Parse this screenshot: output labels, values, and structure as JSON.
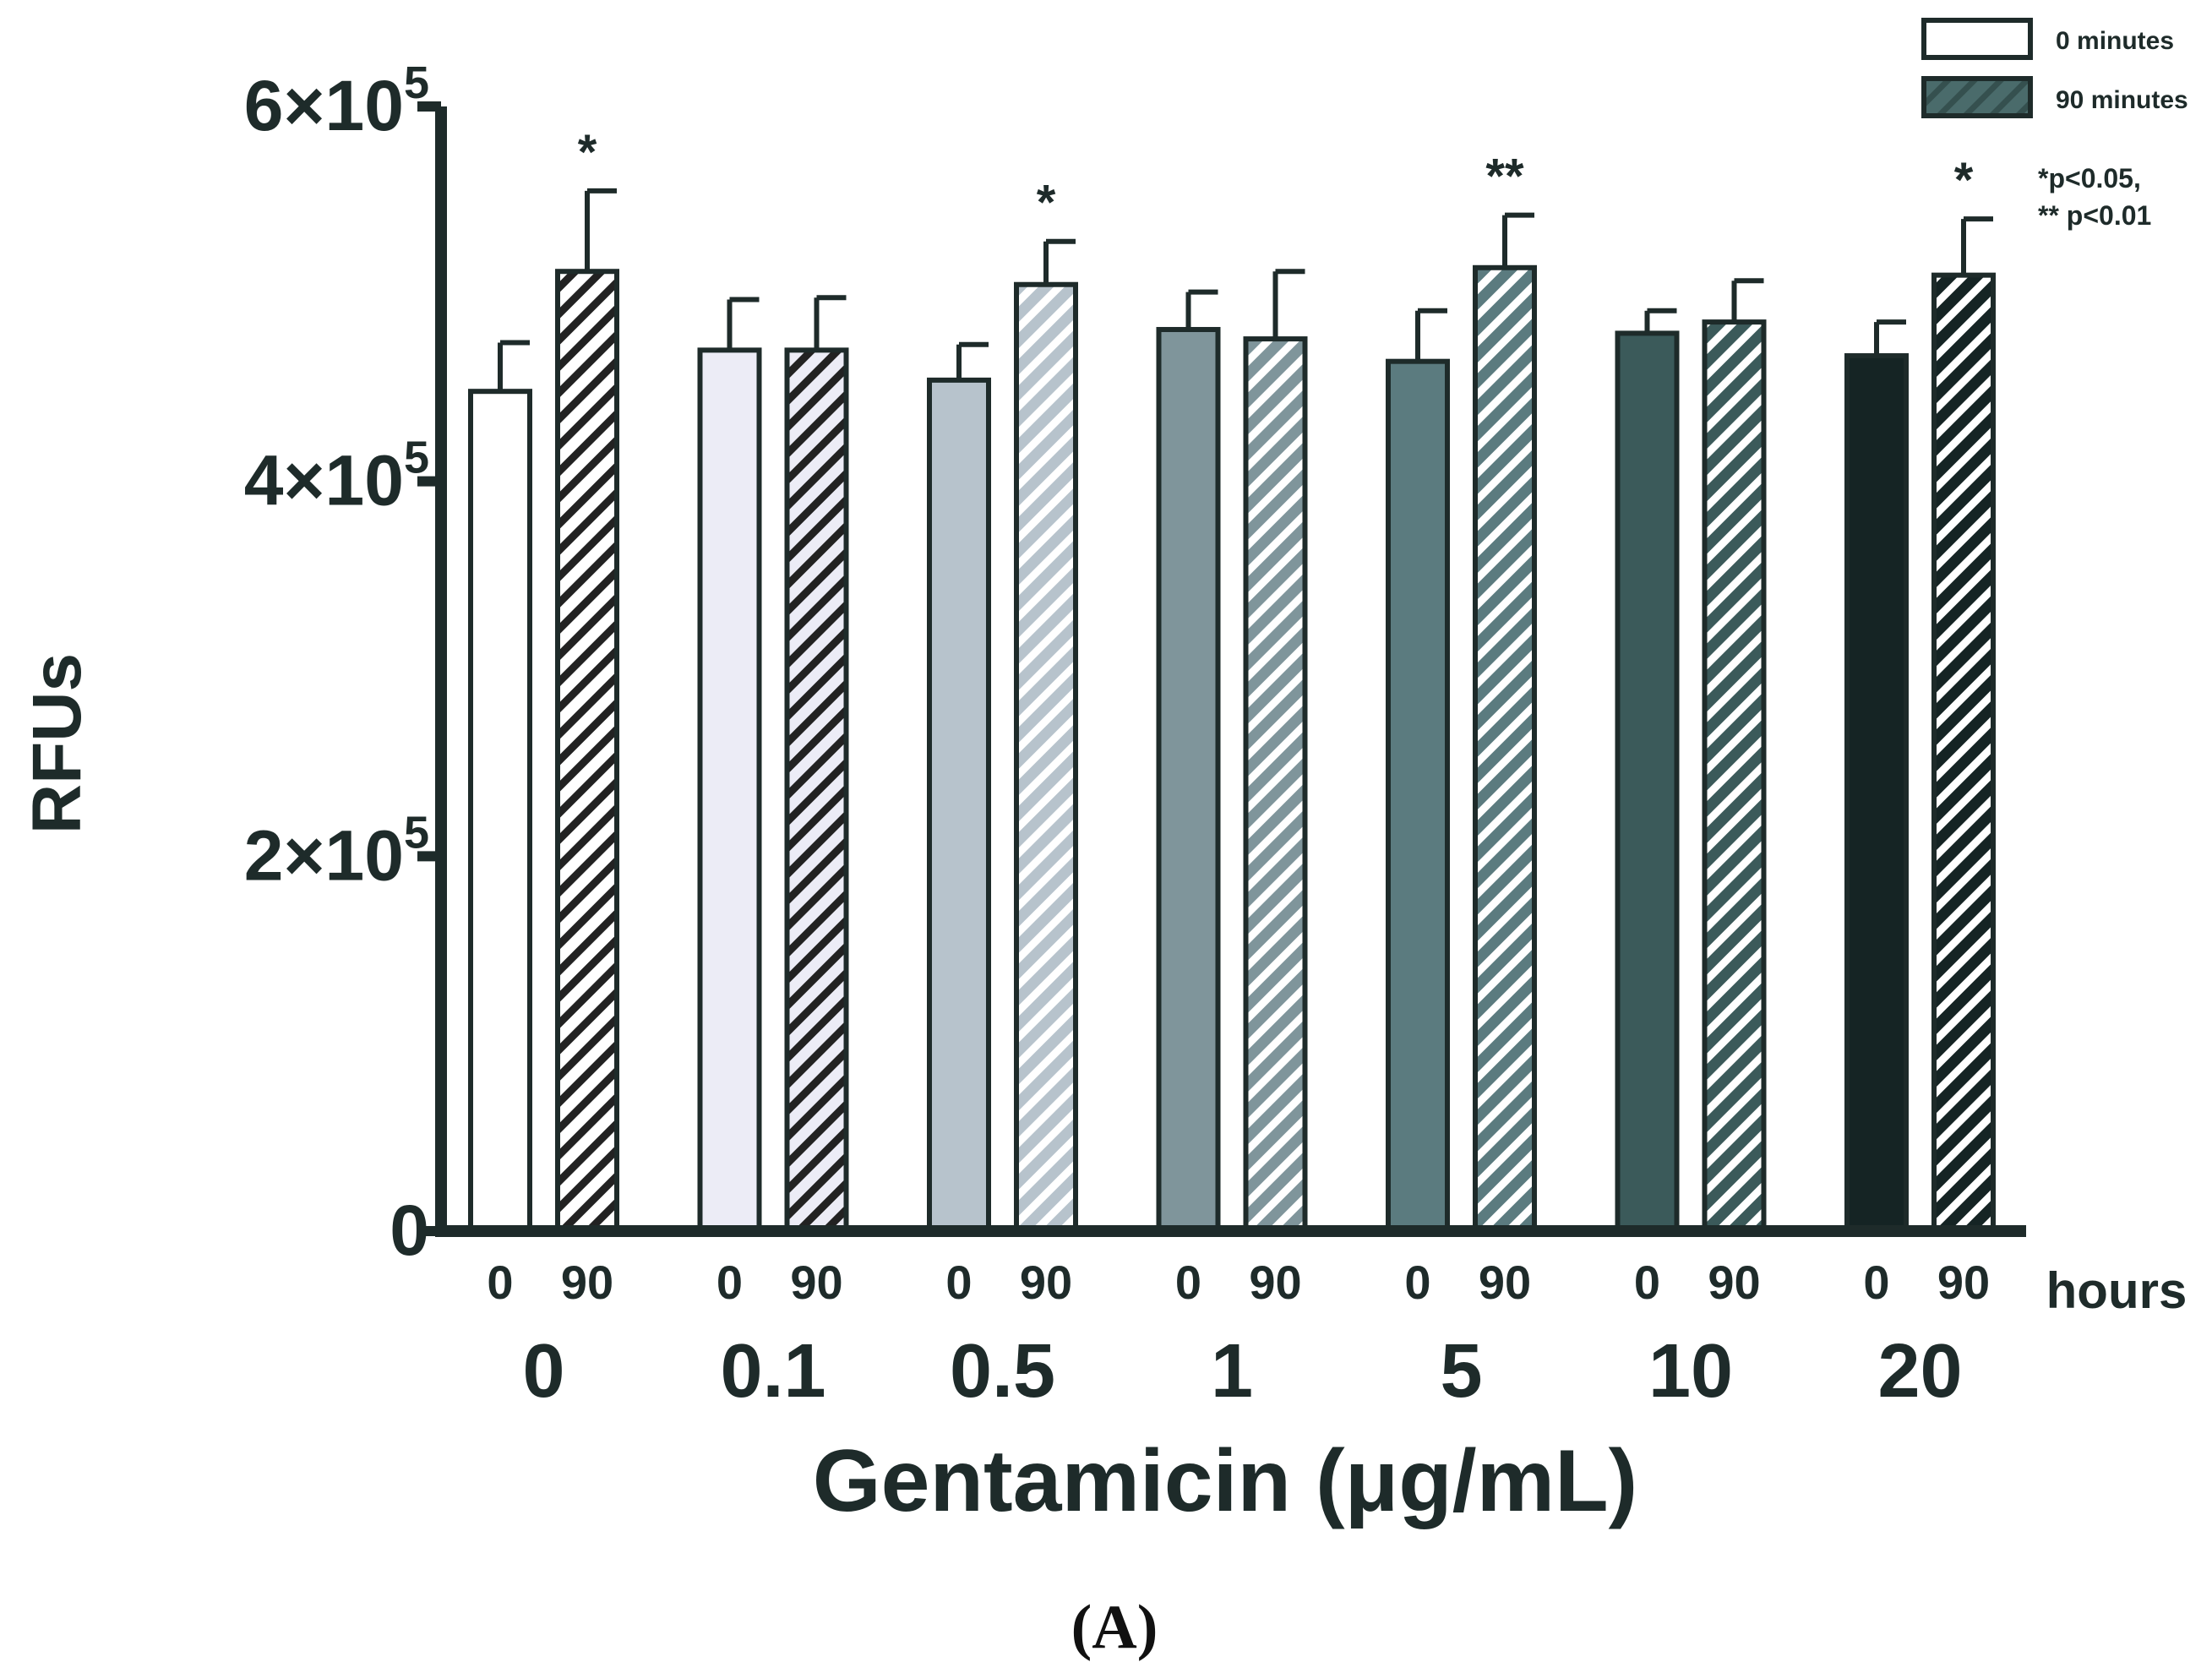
{
  "chart_data": {
    "type": "bar",
    "title": "",
    "panel_label": "(A)",
    "ylabel": "RFUs",
    "xlabel": "Gentamicin (μg/mL)",
    "xunit_label": "hours",
    "ylim": [
      0,
      600000
    ],
    "yticks": [
      {
        "value": 0,
        "label": "0",
        "sup": ""
      },
      {
        "value": 200000,
        "label": "2×10",
        "sup": "5"
      },
      {
        "value": 400000,
        "label": "4×10",
        "sup": "5"
      },
      {
        "value": 600000,
        "label": "6×10",
        "sup": "5"
      }
    ],
    "categories": [
      "0",
      "0.1",
      "0.5",
      "1",
      "5",
      "10",
      "20"
    ],
    "time_labels": [
      "0",
      "90"
    ],
    "series": [
      {
        "name": "0 minutes",
        "values": [
          448000,
          470000,
          454000,
          481000,
          464000,
          479000,
          467000
        ],
        "errors": [
          26000,
          27000,
          19000,
          20000,
          27000,
          12000,
          18000
        ]
      },
      {
        "name": "90 minutes",
        "values": [
          512000,
          470000,
          505000,
          476000,
          514000,
          485000,
          510000
        ],
        "errors": [
          43000,
          28000,
          23000,
          36000,
          28000,
          22000,
          30000
        ]
      }
    ],
    "group_colors": [
      "#ffffff",
      "#ececf6",
      "#b7c3cc",
      "#7f959b",
      "#5b7b7f",
      "#3b5a5a",
      "#152424"
    ],
    "hatch_colors": [
      "#222222",
      "#222222",
      "#ffffff",
      "#ffffff",
      "#ffffff",
      "#ffffff",
      "#ffffff"
    ],
    "significance": [
      "*",
      "",
      "*",
      "",
      "**",
      "",
      "*"
    ],
    "legend": {
      "position": "top-right",
      "entries": [
        {
          "label": "0 minutes",
          "color": "#ffffff"
        },
        {
          "label": "90 minutes",
          "color": "#4a6b6b"
        }
      ],
      "notes": [
        "*p<0.05,",
        "** p<0.01"
      ]
    }
  }
}
